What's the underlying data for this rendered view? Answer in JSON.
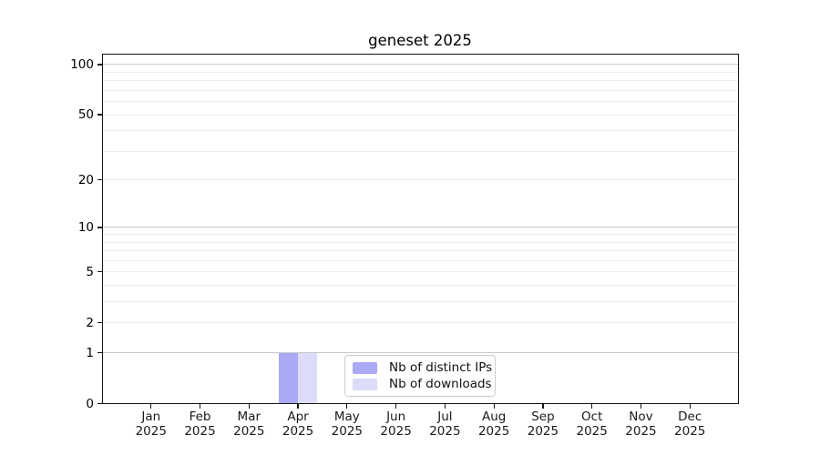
{
  "chart_data": {
    "type": "bar",
    "title": "geneset 2025",
    "categories": [
      "Jan 2025",
      "Feb 2025",
      "Mar 2025",
      "Apr 2025",
      "May 2025",
      "Jun 2025",
      "Jul 2025",
      "Aug 2025",
      "Sep 2025",
      "Oct 2025",
      "Nov 2025",
      "Dec 2025"
    ],
    "series": [
      {
        "name": "Nb of distinct IPs",
        "color": "#a9a9f5",
        "values": [
          0,
          0,
          0,
          1,
          0,
          0,
          0,
          0,
          0,
          0,
          0,
          0
        ]
      },
      {
        "name": "Nb of downloads",
        "color": "#dcdcf8",
        "values": [
          0,
          0,
          0,
          1,
          0,
          0,
          0,
          0,
          0,
          0,
          0,
          0
        ]
      }
    ],
    "yscale": "log1p",
    "ylim": [
      0,
      116
    ],
    "ytick_values": [
      0,
      1,
      2,
      5,
      10,
      20,
      50,
      100
    ],
    "major_grid_values": [
      1,
      10,
      100
    ],
    "minor_grid_values": [
      2,
      3,
      4,
      5,
      6,
      7,
      8,
      9,
      20,
      30,
      40,
      50,
      60,
      70,
      80,
      90
    ],
    "grid": true,
    "legend_position": "lower center",
    "xlabel": "",
    "ylabel": ""
  },
  "colors": {
    "background": "#ffffff",
    "spine": "#141414",
    "grid_minor": "#eeeeee",
    "grid_major": "#c9c9c9",
    "legend_border": "#cccccc",
    "bar_distinct_ips": "#a9a9f5",
    "bar_downloads": "#dcdcf8"
  }
}
